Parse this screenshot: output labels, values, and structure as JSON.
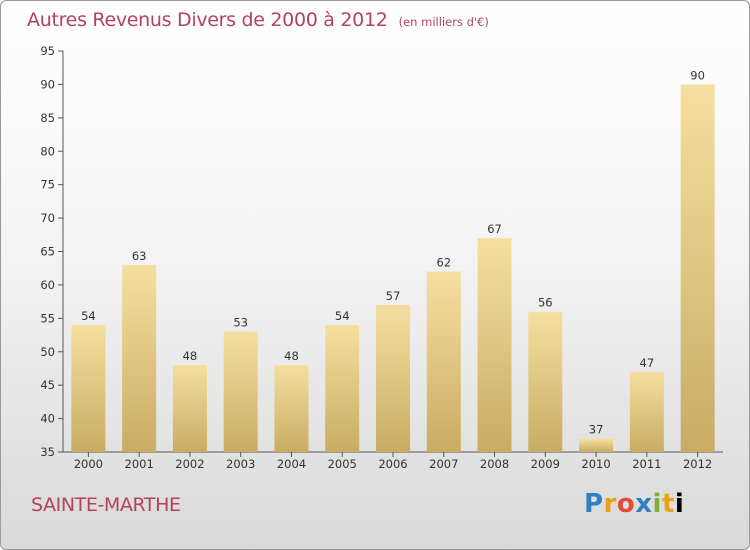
{
  "chart_data": {
    "type": "bar",
    "title": "Autres Revenus Divers de 2000 à 2012",
    "unit_note": "(en milliers d'€)",
    "categories": [
      "2000",
      "2001",
      "2002",
      "2003",
      "2004",
      "2005",
      "2006",
      "2007",
      "2008",
      "2009",
      "2010",
      "2011",
      "2012"
    ],
    "values": [
      54,
      63,
      48,
      53,
      48,
      54,
      57,
      62,
      67,
      56,
      37,
      47,
      90
    ],
    "ylim": [
      35,
      95
    ],
    "yticks": [
      35,
      40,
      45,
      50,
      55,
      60,
      65,
      70,
      75,
      80,
      85,
      90,
      95
    ],
    "grid": false,
    "bar_color_light": "#f5dfa0",
    "bar_color_dark": "#c9ac62",
    "title_color": "#b5425c"
  },
  "footer": {
    "commune": "SAINTE-MARTHE",
    "logo": "Proxiti"
  }
}
